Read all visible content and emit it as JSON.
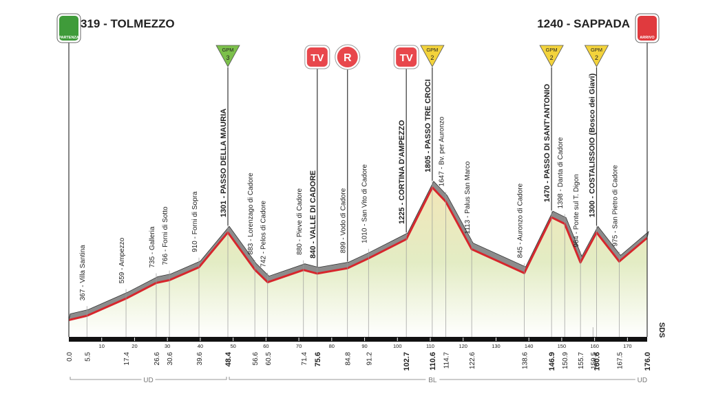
{
  "chart_data": {
    "type": "profile",
    "xlim": [
      0,
      176
    ],
    "ylim": [
      130,
      1980
    ],
    "xticks": [
      10,
      20,
      30,
      40,
      50,
      60,
      70,
      80,
      90,
      100,
      110,
      120,
      130,
      140,
      150,
      160,
      170
    ],
    "line_color": "#d7262c",
    "band_color": "#8c8c8c",
    "fill_color": "#e3ecc4",
    "waypoints": [
      {
        "km": {
          "value": 0,
          "label": "0.0"
        },
        "elevation": 319,
        "label": "319 - TOLMEZZO",
        "kind": "start",
        "badge": "PARTENZA",
        "color": "#3f9b3a"
      },
      {
        "km": 5.5,
        "elevation": 367,
        "label": "367 - Villa Santina"
      },
      {
        "km": 17.4,
        "elevation": 559,
        "label": "559 - Ampezzo"
      },
      {
        "km": 26.6,
        "elevation": 735,
        "label": "735 - Galleria"
      },
      {
        "km": 30.6,
        "elevation": 766,
        "label": "766 - Forni di Sotto"
      },
      {
        "km": 39.6,
        "elevation": 910,
        "label": "910 - Forni di Sopra"
      },
      {
        "km": 48.4,
        "elevation": 1301,
        "label": "1301 - PASSO DELLA MAURIA",
        "bold": true
      },
      {
        "km": 56.6,
        "elevation": 883,
        "label": "883 - Lorenzago di Cadore"
      },
      {
        "km": 60.5,
        "elevation": 742,
        "label": "742 - Pelos di Cadore"
      },
      {
        "km": 71.4,
        "elevation": 880,
        "label": "880 - Pieve di Cadore"
      },
      {
        "km": 75.6,
        "elevation": 840,
        "label": "840 - VALLE DI CADORE",
        "bold": true
      },
      {
        "km": 84.8,
        "elevation": 899,
        "label": "899 - Vodo di Cadore"
      },
      {
        "km": 91.2,
        "elevation": 1010,
        "label": "1010 - San Vito di Cadore"
      },
      {
        "km": 102.7,
        "elevation": 1225,
        "label": "1225 - CORTINA D'AMPEZZO",
        "bold": true
      },
      {
        "km": 110.6,
        "elevation": 1805,
        "label": "1805 - PASSO TRE CROCI",
        "bold": true
      },
      {
        "km": 114.7,
        "elevation": 1647,
        "label": "1647 - Bv. per Auronzo"
      },
      {
        "km": 122.6,
        "elevation": 1113,
        "label": "1113 - Palus San Marco"
      },
      {
        "km": 138.6,
        "elevation": 845,
        "label": "845 - Auronzo di Cadore"
      },
      {
        "km": 146.9,
        "elevation": 1470,
        "label": "1470 - PASSO DI SANT'ANTONIO",
        "bold": true
      },
      {
        "km": 150.9,
        "elevation": 1398,
        "label": "1398 - Danta di Cadore"
      },
      {
        "km": 155.7,
        "elevation": 964,
        "label": "964 - Ponte sul T. Digon"
      },
      {
        "km": 159.5
      },
      {
        "km": 160.6,
        "elevation": 1300,
        "label": "1300 - COSTALISSOIO (Bosco dei Giavi)",
        "bold": true
      },
      {
        "km": 167.5,
        "elevation": 975,
        "label": "975 - San Pietro di Cadore"
      },
      {
        "km": {
          "value": 176,
          "label": "176.0"
        },
        "elevation": 1240,
        "label": "1240 - SAPPADA",
        "kind": "finish",
        "badge": "ARRIVO",
        "color": "#e03a3e"
      }
    ],
    "bold_km": [
      48.4,
      75.6,
      102.7,
      110.6,
      146.9,
      160.6,
      176
    ],
    "markers": [
      {
        "km": 48.4,
        "kind": "gpm",
        "text": "GPM",
        "category": "3",
        "color": "#7cc04b"
      },
      {
        "km": 75.6,
        "kind": "tv",
        "text": "TV",
        "color": "#e8474c"
      },
      {
        "km": 84.8,
        "kind": "r",
        "text": "R",
        "color": "#e8474c"
      },
      {
        "km": 102.7,
        "kind": "tv",
        "text": "TV",
        "color": "#e8474c"
      },
      {
        "km": 110.6,
        "kind": "gpm",
        "text": "GPM",
        "category": "2",
        "color": "#f3d33c"
      },
      {
        "km": 146.9,
        "kind": "gpm",
        "text": "GPM",
        "category": "2",
        "color": "#f3d33c"
      },
      {
        "km": 160.6,
        "kind": "gpm",
        "text": "GPM",
        "category": "2",
        "color": "#f3d33c"
      }
    ],
    "provinces": [
      {
        "label": "UD",
        "from": 0,
        "to": 48.4
      },
      {
        "label": "BL",
        "from": 48.4,
        "to": 173
      },
      {
        "label": "UD",
        "from": 173,
        "to": 176
      }
    ],
    "logo": "SDS"
  }
}
